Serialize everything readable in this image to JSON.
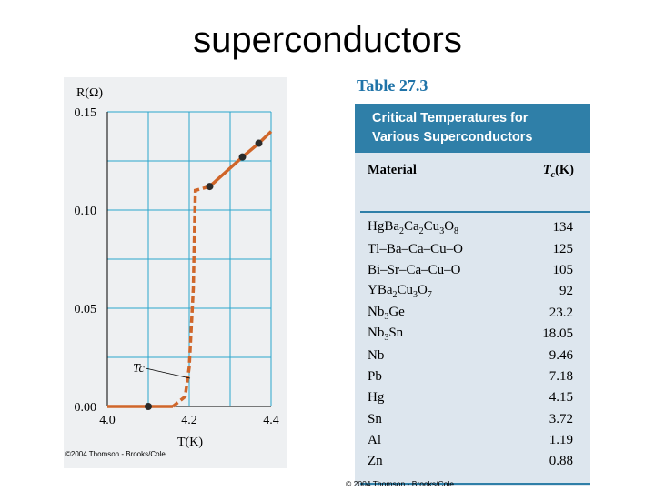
{
  "slide": {
    "title": "superconductors"
  },
  "chart_data": {
    "type": "line",
    "ylabel": "R(Ω)",
    "xlabel": "T(K)",
    "xlim": [
      4.0,
      4.4
    ],
    "ylim": [
      0.0,
      0.15
    ],
    "x_ticks": [
      "4.0",
      "4.2",
      "4.4"
    ],
    "y_ticks": [
      "0.00",
      "0.05",
      "0.10",
      "0.15"
    ],
    "grid": true,
    "annotation": "Tc",
    "series": [
      {
        "points": [
          [
            4.0,
            0.0
          ],
          [
            4.1,
            0.0
          ],
          [
            4.16,
            0.0
          ],
          [
            4.19,
            0.005
          ],
          [
            4.2,
            0.02
          ],
          [
            4.21,
            0.06
          ],
          [
            4.215,
            0.11
          ],
          [
            4.25,
            0.112
          ],
          [
            4.33,
            0.127
          ],
          [
            4.37,
            0.134
          ],
          [
            4.4,
            0.14
          ]
        ],
        "markers": [
          [
            4.1,
            0.0
          ],
          [
            4.25,
            0.112
          ],
          [
            4.33,
            0.127
          ],
          [
            4.37,
            0.134
          ]
        ]
      }
    ],
    "credit": "©2004 Thomson - Brooks/Cole"
  },
  "table": {
    "heading": "Table 27.3",
    "caption_line1": "Critical Temperatures for",
    "caption_line2": "Various Superconductors",
    "col_material": "Material",
    "col_tc": "Tc(K)",
    "rows": [
      {
        "material": "HgBa2Ca2Cu3O8",
        "tc": "134"
      },
      {
        "material": "Tl–Ba–Ca–Cu–O",
        "tc": "125"
      },
      {
        "material": "Bi–Sr–Ca–Cu–O",
        "tc": "105"
      },
      {
        "material": "YBa2Cu3O7",
        "tc": "92"
      },
      {
        "material": "Nb3Ge",
        "tc": "23.2"
      },
      {
        "material": "Nb3Sn",
        "tc": "18.05"
      },
      {
        "material": "Nb",
        "tc": "9.46"
      },
      {
        "material": "Pb",
        "tc": "7.18"
      },
      {
        "material": "Hg",
        "tc": "4.15"
      },
      {
        "material": "Sn",
        "tc": "3.72"
      },
      {
        "material": "Al",
        "tc": "1.19"
      },
      {
        "material": "Zn",
        "tc": "0.88"
      }
    ],
    "credit": "© 2004 Thomson - Brooks/Cole"
  },
  "colors": {
    "grid": "#2aa6cc",
    "curve": "#d0662a",
    "marker": "#2b2b2b",
    "table_accent": "#2f7fa8",
    "table_bg": "#dde6ee",
    "heading": "#1f73a8"
  }
}
